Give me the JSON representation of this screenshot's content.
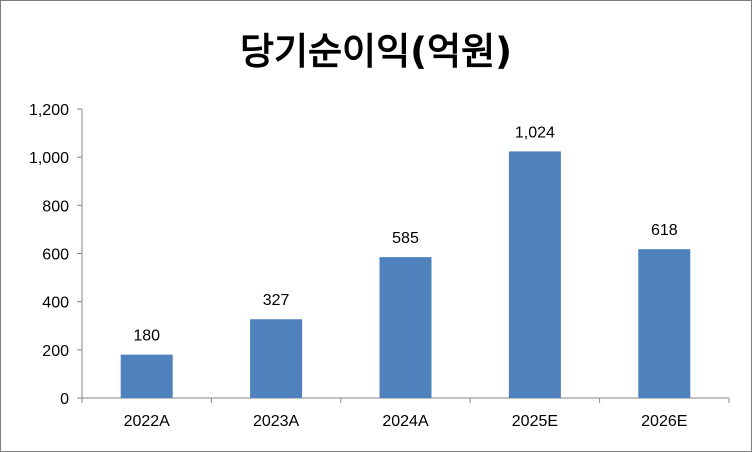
{
  "chart_data": {
    "type": "bar",
    "title": "당기순이익(억원)",
    "xlabel": "",
    "ylabel": "",
    "categories": [
      "2022A",
      "2023A",
      "2024A",
      "2025E",
      "2026E"
    ],
    "values": [
      180,
      327,
      585,
      1024,
      618
    ],
    "value_labels": [
      "180",
      "327",
      "585",
      "1,024",
      "618"
    ],
    "ylim": [
      0,
      1200
    ],
    "yticks": [
      0,
      200,
      400,
      600,
      800,
      1000,
      1200
    ],
    "ytick_labels": [
      "0",
      "200",
      "400",
      "600",
      "800",
      "1,000",
      "1,200"
    ],
    "bar_color": "#4f81bd",
    "grid": false,
    "legend": "none"
  }
}
